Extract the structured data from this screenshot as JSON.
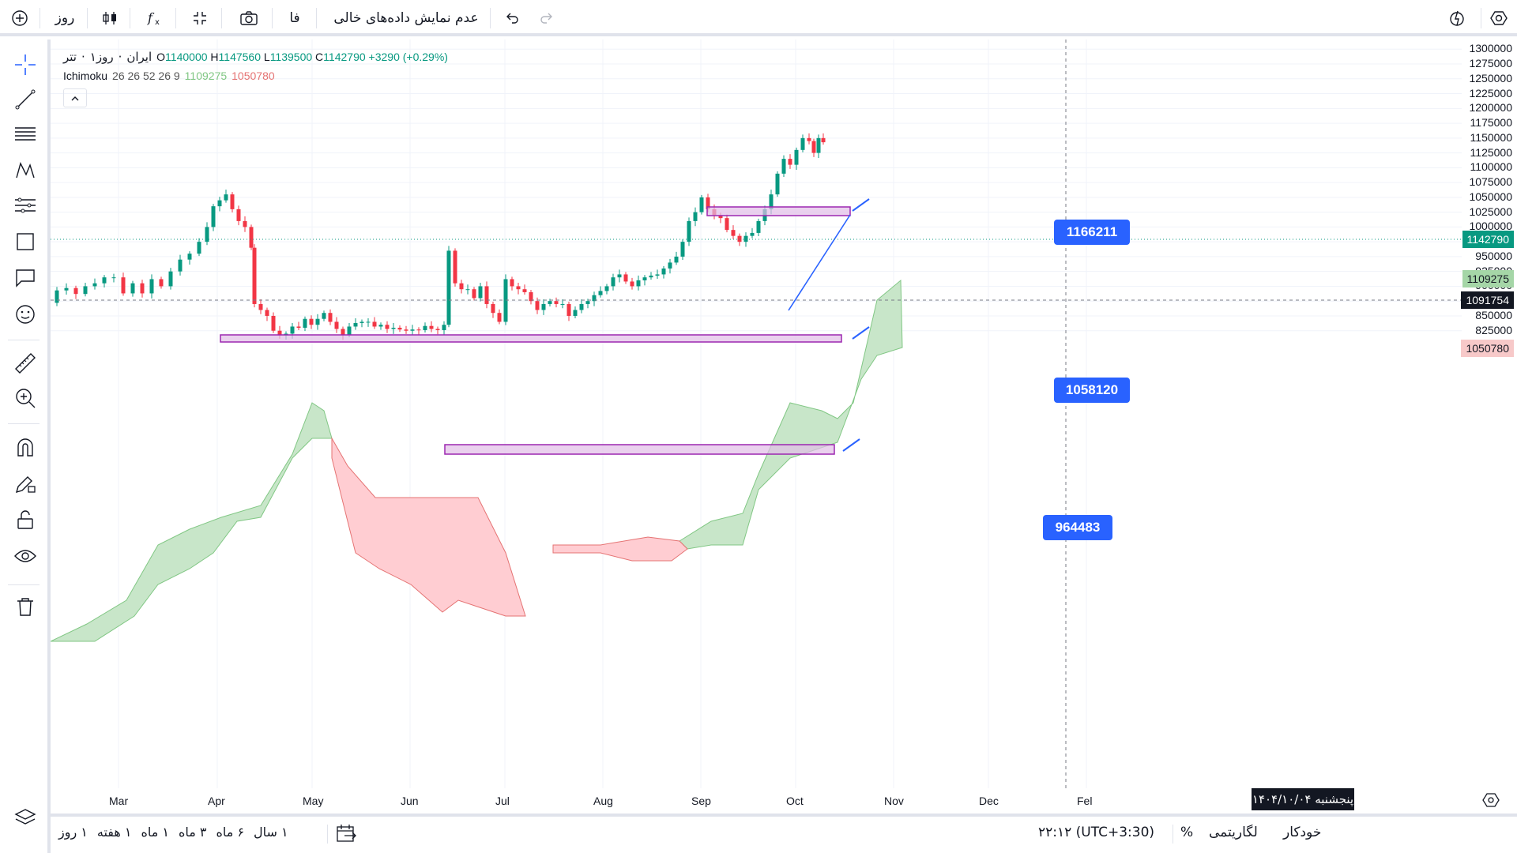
{
  "topbar": {
    "add_label": "+",
    "interval": "روز",
    "language": "فا",
    "empty_data_label": "عدم نمایش داده‌های خالی"
  },
  "legend": {
    "symbol": "تتر",
    "interval_text": "۱روز",
    "exchange": "ایران",
    "separator": "·",
    "open_label": "O",
    "open": "1140000",
    "high_label": "H",
    "high": "1147560",
    "low_label": "L",
    "low": "1139500",
    "close_label": "C",
    "close": "1142790",
    "change": "+3290 (+0.29%)",
    "indicator_name": "Ichimoku",
    "indicator_params": "26 26 52 26 9",
    "indicator_val1": "1109275",
    "indicator_val2": "1050780",
    "collapse_icon": "chevron-up-icon"
  },
  "price_axis": {
    "labels": [
      "1300000",
      "1275000",
      "1250000",
      "1225000",
      "1200000",
      "1175000",
      "1150000",
      "1125000",
      "1100000",
      "1075000",
      "1050000",
      "1025000",
      "1000000",
      "975000",
      "950000",
      "925000",
      "900000",
      "875000",
      "850000",
      "825000"
    ],
    "badges": [
      {
        "value": "1142790",
        "bg": "#089981",
        "fg": "#ffffff"
      },
      {
        "value": "1109275",
        "bg": "#a5d6a7",
        "fg": "#131722"
      },
      {
        "value": "1091754",
        "bg": "#131722",
        "fg": "#ffffff"
      },
      {
        "value": "1050780",
        "bg": "#f7c9c9",
        "fg": "#131722"
      }
    ]
  },
  "time_axis": {
    "labels": [
      "Mar",
      "Apr",
      "May",
      "Jun",
      "Jul",
      "Aug",
      "Sep",
      "Oct",
      "Nov",
      "Dec",
      "Fel"
    ],
    "crosshair_date": "پنجشنبه ۱۴۰۴/۱۰/۰۴"
  },
  "callouts": [
    "1166211",
    "1058120",
    "964483"
  ],
  "bottombar": {
    "ranges": [
      "۱ روز",
      "۱ هفته",
      "۱ ماه",
      "۳ ماه",
      "۶ ماه",
      "۱ سال"
    ],
    "time": "۲۲:۱۲ (UTC+3:30)",
    "percent": "%",
    "log": "لگاریتمی",
    "auto": "خودکار"
  },
  "colors": {
    "up": "#089981",
    "down": "#f23645",
    "zone_fill": "#e1bee7",
    "zone_border": "#9c27b0",
    "cloud_green": "#c8e6c9",
    "cloud_red": "#ffcdd2",
    "accent": "#2962ff"
  }
}
